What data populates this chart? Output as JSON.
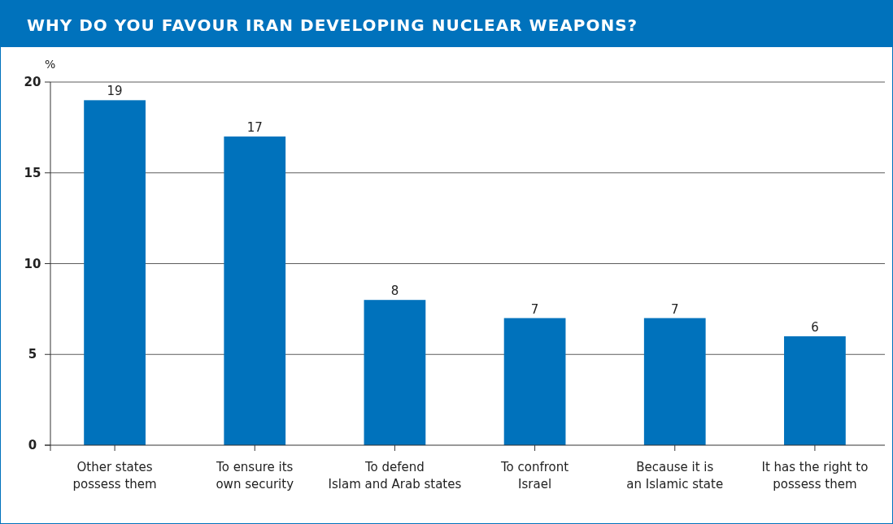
{
  "chart_data": {
    "type": "bar",
    "title": "WHY DO YOU FAVOUR IRAN DEVELOPING NUCLEAR WEAPONS?",
    "ylabel": "%",
    "categories": [
      "Other states\npossess them",
      "To ensure its\nown security",
      "To defend\nIslam and Arab states",
      "To confront\nIsrael",
      "Because it is\nan Islamic state",
      "It has the right to\npossess them"
    ],
    "values": [
      19,
      17,
      8,
      7,
      7,
      6
    ],
    "color": "#0072bc",
    "ylim": [
      0,
      20
    ],
    "yticks": [
      0,
      5,
      10,
      15,
      20
    ],
    "grid": "y",
    "data_labels": true
  }
}
